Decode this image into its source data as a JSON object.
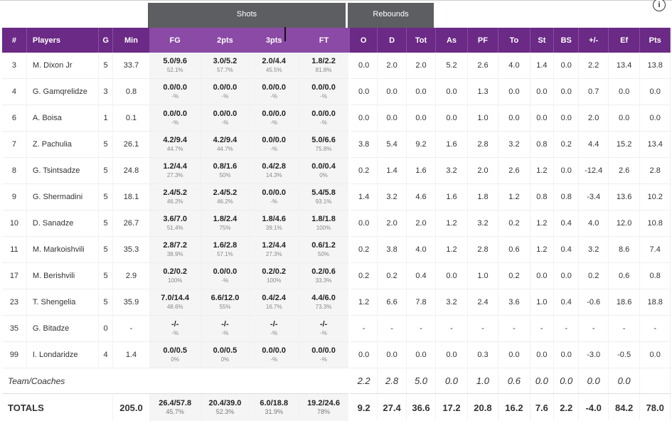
{
  "group_headers": {
    "shots": "Shots",
    "rebounds": "Rebounds"
  },
  "info_icon": "i",
  "columns": [
    "#",
    "Players",
    "G",
    "Min",
    "FG",
    "2pts",
    "3pts",
    "FT",
    "O",
    "D",
    "Tot",
    "As",
    "PF",
    "To",
    "St",
    "BS",
    "+/-",
    "Ef",
    "Pts"
  ],
  "rows": [
    {
      "num": "3",
      "name": "M. Dixon Jr",
      "g": "5",
      "min": "33.7",
      "fg": "5.0/9.6",
      "fgp": "52.1%",
      "p2": "3.0/5.2",
      "p2p": "57.7%",
      "p3": "2.0/4.4",
      "p3p": "45.5%",
      "ft": "1.8/2.2",
      "ftp": "81.8%",
      "o": "0.0",
      "d": "2.0",
      "tot": "2.0",
      "as": "5.2",
      "pf": "2.6",
      "to": "4.0",
      "st": "1.4",
      "bs": "0.0",
      "pm": "2.2",
      "ef": "13.4",
      "pts": "13.8"
    },
    {
      "num": "4",
      "name": "G. Gamqrelidze",
      "g": "3",
      "min": "0.8",
      "fg": "0.0/0.0",
      "fgp": "-%",
      "p2": "0.0/0.0",
      "p2p": "-%",
      "p3": "0.0/0.0",
      "p3p": "-%",
      "ft": "0.0/0.0",
      "ftp": "-%",
      "o": "0.0",
      "d": "0.0",
      "tot": "0.0",
      "as": "0.0",
      "pf": "1.3",
      "to": "0.0",
      "st": "0.0",
      "bs": "0.0",
      "pm": "0.7",
      "ef": "0.0",
      "pts": "0.0"
    },
    {
      "num": "6",
      "name": "A. Boisa",
      "g": "1",
      "min": "0.1",
      "fg": "0.0/0.0",
      "fgp": "-%",
      "p2": "0.0/0.0",
      "p2p": "-%",
      "p3": "0.0/0.0",
      "p3p": "-%",
      "ft": "0.0/0.0",
      "ftp": "-%",
      "o": "0.0",
      "d": "0.0",
      "tot": "0.0",
      "as": "0.0",
      "pf": "1.0",
      "to": "0.0",
      "st": "0.0",
      "bs": "0.0",
      "pm": "2.0",
      "ef": "0.0",
      "pts": "0.0"
    },
    {
      "num": "7",
      "name": "Z. Pachulia",
      "g": "5",
      "min": "26.1",
      "fg": "4.2/9.4",
      "fgp": "44.7%",
      "p2": "4.2/9.4",
      "p2p": "44.7%",
      "p3": "0.0/0.0",
      "p3p": "-%",
      "ft": "5.0/6.6",
      "ftp": "75.8%",
      "o": "3.8",
      "d": "5.4",
      "tot": "9.2",
      "as": "1.6",
      "pf": "2.8",
      "to": "3.2",
      "st": "0.8",
      "bs": "0.2",
      "pm": "4.4",
      "ef": "15.2",
      "pts": "13.4"
    },
    {
      "num": "8",
      "name": "G. Tsintsadze",
      "g": "5",
      "min": "24.8",
      "fg": "1.2/4.4",
      "fgp": "27.3%",
      "p2": "0.8/1.6",
      "p2p": "50%",
      "p3": "0.4/2.8",
      "p3p": "14.3%",
      "ft": "0.0/0.4",
      "ftp": "0%",
      "o": "0.2",
      "d": "1.4",
      "tot": "1.6",
      "as": "3.2",
      "pf": "2.0",
      "to": "2.6",
      "st": "1.2",
      "bs": "0.0",
      "pm": "-12.4",
      "ef": "2.6",
      "pts": "2.8"
    },
    {
      "num": "9",
      "name": "G. Shermadini",
      "g": "5",
      "min": "18.1",
      "fg": "2.4/5.2",
      "fgp": "46.2%",
      "p2": "2.4/5.2",
      "p2p": "46.2%",
      "p3": "0.0/0.0",
      "p3p": "-%",
      "ft": "5.4/5.8",
      "ftp": "93.1%",
      "o": "1.4",
      "d": "3.2",
      "tot": "4.6",
      "as": "1.6",
      "pf": "1.8",
      "to": "1.2",
      "st": "0.8",
      "bs": "0.8",
      "pm": "-3.4",
      "ef": "13.6",
      "pts": "10.2"
    },
    {
      "num": "10",
      "name": "D. Sanadze",
      "g": "5",
      "min": "26.7",
      "fg": "3.6/7.0",
      "fgp": "51.4%",
      "p2": "1.8/2.4",
      "p2p": "75%",
      "p3": "1.8/4.6",
      "p3p": "39.1%",
      "ft": "1.8/1.8",
      "ftp": "100%",
      "o": "0.0",
      "d": "2.0",
      "tot": "2.0",
      "as": "1.2",
      "pf": "3.2",
      "to": "0.2",
      "st": "1.2",
      "bs": "0.4",
      "pm": "4.0",
      "ef": "12.0",
      "pts": "10.8"
    },
    {
      "num": "11",
      "name": "M. Markoishvili",
      "g": "5",
      "min": "35.3",
      "fg": "2.8/7.2",
      "fgp": "38.9%",
      "p2": "1.6/2.8",
      "p2p": "57.1%",
      "p3": "1.2/4.4",
      "p3p": "27.3%",
      "ft": "0.6/1.2",
      "ftp": "50%",
      "o": "0.2",
      "d": "3.8",
      "tot": "4.0",
      "as": "1.2",
      "pf": "2.8",
      "to": "0.6",
      "st": "1.2",
      "bs": "0.4",
      "pm": "3.2",
      "ef": "8.6",
      "pts": "7.4"
    },
    {
      "num": "17",
      "name": "M. Berishvili",
      "g": "5",
      "min": "2.9",
      "fg": "0.2/0.2",
      "fgp": "100%",
      "p2": "0.0/0.0",
      "p2p": "-%",
      "p3": "0.2/0.2",
      "p3p": "100%",
      "ft": "0.2/0.6",
      "ftp": "33.3%",
      "o": "0.2",
      "d": "0.2",
      "tot": "0.4",
      "as": "0.0",
      "pf": "1.0",
      "to": "0.2",
      "st": "0.0",
      "bs": "0.0",
      "pm": "0.2",
      "ef": "0.6",
      "pts": "0.8"
    },
    {
      "num": "23",
      "name": "T. Shengelia",
      "g": "5",
      "min": "35.9",
      "fg": "7.0/14.4",
      "fgp": "48.6%",
      "p2": "6.6/12.0",
      "p2p": "55%",
      "p3": "0.4/2.4",
      "p3p": "16.7%",
      "ft": "4.4/6.0",
      "ftp": "73.3%",
      "o": "1.2",
      "d": "6.6",
      "tot": "7.8",
      "as": "3.2",
      "pf": "2.4",
      "to": "3.6",
      "st": "1.0",
      "bs": "0.4",
      "pm": "-0.6",
      "ef": "18.6",
      "pts": "18.8"
    },
    {
      "num": "35",
      "name": "G. Bitadze",
      "g": "0",
      "min": "-",
      "fg": "-/-",
      "fgp": "-%",
      "p2": "-/-",
      "p2p": "-%",
      "p3": "-/-",
      "p3p": "-%",
      "ft": "-/-",
      "ftp": "-%",
      "o": "-",
      "d": "-",
      "tot": "-",
      "as": "-",
      "pf": "-",
      "to": "-",
      "st": "-",
      "bs": "-",
      "pm": "-",
      "ef": "-",
      "pts": "-"
    },
    {
      "num": "99",
      "name": "I. Londaridze",
      "g": "4",
      "min": "1.4",
      "fg": "0.0/0.5",
      "fgp": "0%",
      "p2": "0.0/0.5",
      "p2p": "0%",
      "p3": "0.0/0.0",
      "p3p": "-%",
      "ft": "0.0/0.0",
      "ftp": "-%",
      "o": "0.0",
      "d": "0.0",
      "tot": "0.0",
      "as": "0.0",
      "pf": "0.3",
      "to": "0.0",
      "st": "0.0",
      "bs": "0.0",
      "pm": "-3.0",
      "ef": "-0.5",
      "pts": "0.0"
    }
  ],
  "team": {
    "label": "Team/Coaches",
    "o": "2.2",
    "d": "2.8",
    "tot": "5.0",
    "as": "0.0",
    "pf": "1.0",
    "to": "0.6",
    "st": "0.0",
    "bs": "0.0",
    "pm": "0.0",
    "ef": "0.0",
    "pts": ""
  },
  "totals": {
    "label": "TOTALS",
    "min": "205.0",
    "fg": "26.4/57.8",
    "fgp": "45.7%",
    "p2": "20.4/39.0",
    "p2p": "52.3%",
    "p3": "6.0/18.8",
    "p3p": "31.9%",
    "ft": "19.2/24.6",
    "ftp": "78%",
    "o": "9.2",
    "d": "27.4",
    "tot": "36.6",
    "as": "17.2",
    "pf": "20.8",
    "to": "16.2",
    "st": "7.6",
    "bs": "2.2",
    "pm": "-4.0",
    "ef": "84.2",
    "pts": "78.0"
  }
}
